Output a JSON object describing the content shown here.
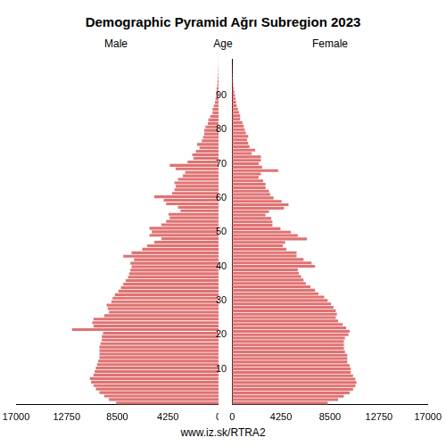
{
  "chart_data": {
    "type": "bar",
    "orientation": "horizontal",
    "title": "Demographic Pyramid Ağrı Subregion 2023",
    "ylabel": "Age",
    "source": "www.iz.sk/RTRA2",
    "categories": [
      null,
      null,
      null,
      null,
      null,
      null,
      null,
      null,
      null,
      null,
      "10",
      null,
      null,
      null,
      null,
      null,
      null,
      null,
      null,
      null,
      "20",
      null,
      null,
      null,
      null,
      null,
      null,
      null,
      null,
      null,
      "30",
      null,
      null,
      null,
      null,
      null,
      null,
      null,
      null,
      null,
      "40",
      null,
      null,
      null,
      null,
      null,
      null,
      null,
      null,
      null,
      "50",
      null,
      null,
      null,
      null,
      null,
      null,
      null,
      null,
      null,
      "60",
      null,
      null,
      null,
      null,
      null,
      null,
      null,
      null,
      null,
      "70",
      null,
      null,
      null,
      null,
      null,
      null,
      null,
      null,
      null,
      "80",
      null,
      null,
      null,
      null,
      null,
      null,
      null,
      null,
      null,
      "90",
      null,
      null,
      null,
      null,
      null,
      null,
      null,
      null,
      null,
      null
    ],
    "series": [
      {
        "name": "Male",
        "color": "#e07272",
        "values": [
          8600,
          9200,
          9600,
          10000,
          10300,
          10500,
          10700,
          10800,
          10500,
          10400,
          10300,
          10200,
          10100,
          10000,
          10000,
          10000,
          10000,
          9900,
          9800,
          9800,
          9700,
          12300,
          10500,
          10600,
          10500,
          9600,
          9200,
          9300,
          9400,
          9000,
          8900,
          8700,
          8400,
          8200,
          8000,
          7800,
          7600,
          7500,
          7400,
          7300,
          7400,
          7100,
          8000,
          7300,
          6400,
          6000,
          5400,
          4800,
          5800,
          5600,
          5800,
          4800,
          4400,
          4100,
          4200,
          3200,
          3400,
          4400,
          4600,
          5400,
          3900,
          3700,
          3600,
          3700,
          3400,
          3000,
          2800,
          3600,
          4100,
          2600,
          2100,
          2200,
          1900,
          1600,
          1800,
          1400,
          1300,
          1200,
          1200,
          1100,
          900,
          850,
          700,
          500,
          500,
          400,
          300,
          250,
          200,
          180,
          160,
          100,
          80,
          60,
          40,
          30,
          20,
          15,
          10,
          5,
          5
        ]
      },
      {
        "name": "Female",
        "color": "#e07272",
        "values": [
          8300,
          9200,
          9700,
          10200,
          10500,
          10700,
          10800,
          10700,
          10500,
          10300,
          10300,
          10200,
          10000,
          10000,
          10000,
          9800,
          9700,
          9700,
          9700,
          9800,
          10100,
          10200,
          9900,
          9600,
          9200,
          9000,
          9100,
          9000,
          8800,
          8600,
          8300,
          8000,
          7500,
          7200,
          6800,
          6400,
          6200,
          6000,
          5800,
          5700,
          7200,
          6900,
          6200,
          5600,
          5600,
          4700,
          4400,
          4600,
          6500,
          5700,
          5100,
          4200,
          3500,
          3500,
          3400,
          2900,
          3200,
          4500,
          4900,
          4300,
          3600,
          3300,
          3200,
          2900,
          2900,
          2700,
          2300,
          2500,
          4000,
          2600,
          2300,
          2500,
          2500,
          1700,
          2000,
          1500,
          1400,
          1300,
          1400,
          1200,
          1100,
          1000,
          900,
          700,
          700,
          600,
          500,
          400,
          350,
          300,
          250,
          200,
          150,
          100,
          80,
          60,
          40,
          30,
          20,
          10,
          10
        ]
      }
    ],
    "xlim": [
      0,
      17000
    ],
    "xticks": [
      0,
      4250,
      8500,
      12750,
      17000
    ],
    "grid": false
  }
}
